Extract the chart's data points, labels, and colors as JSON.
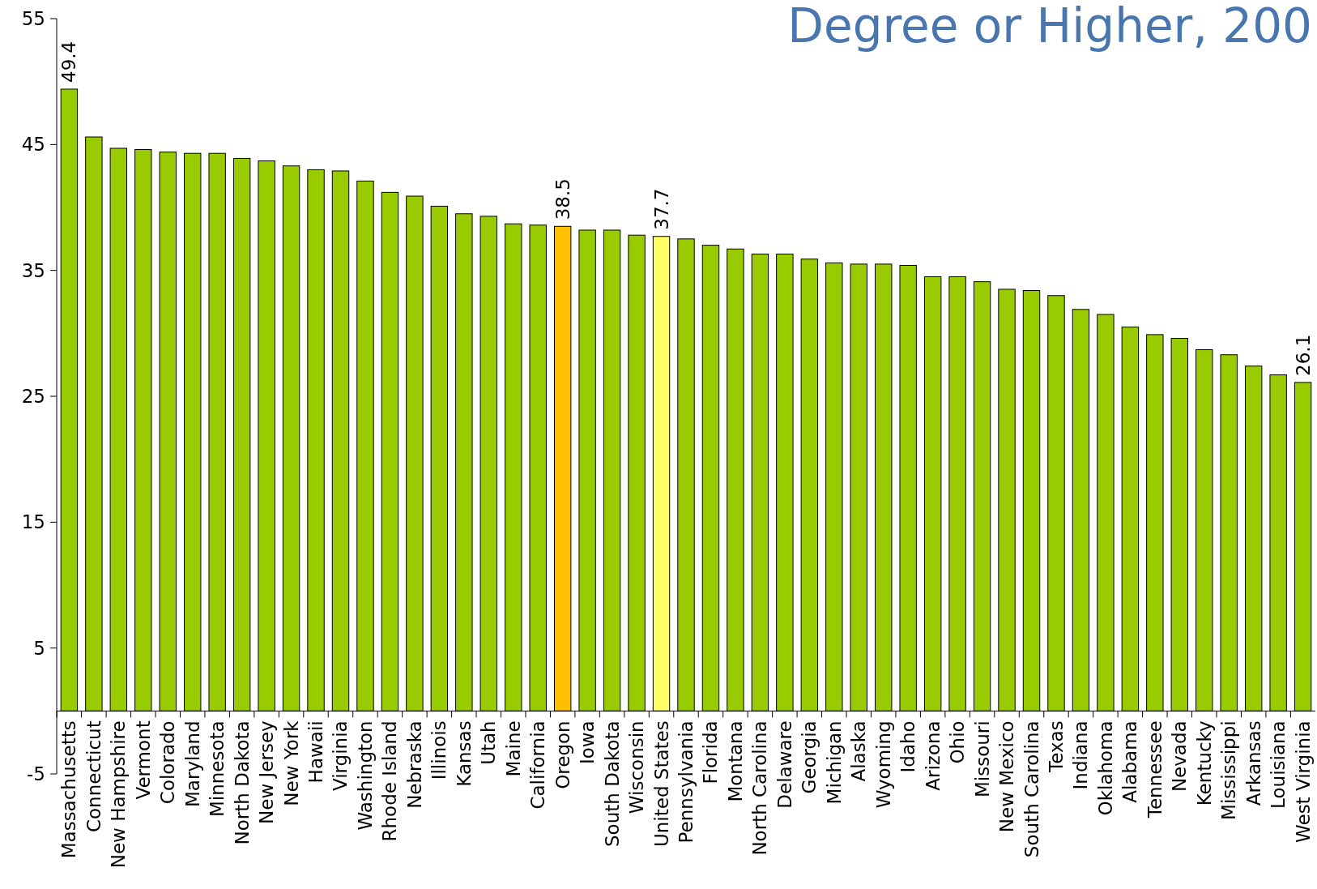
{
  "chart_data": {
    "type": "bar",
    "title": "Degree or Higher, 200",
    "categories": [
      "Massachusetts",
      "Connecticut",
      "New Hampshire",
      "Vermont",
      "Colorado",
      "Maryland",
      "Minnesota",
      "North Dakota",
      "New Jersey",
      "New York",
      "Hawaii",
      "Virginia",
      "Washington",
      "Rhode Island",
      "Nebraska",
      "Illinois",
      "Kansas",
      "Utah",
      "Maine",
      "California",
      "Oregon",
      "Iowa",
      "South Dakota",
      "Wisconsin",
      "United States",
      "Pennsylvania",
      "Florida",
      "Montana",
      "North Carolina",
      "Delaware",
      "Georgia",
      "Michigan",
      "Alaska",
      "Wyoming",
      "Idaho",
      "Arizona",
      "Ohio",
      "Missouri",
      "New Mexico",
      "South Carolina",
      "Texas",
      "Indiana",
      "Oklahoma",
      "Alabama",
      "Tennessee",
      "Nevada",
      "Kentucky",
      "Mississippi",
      "Arkansas",
      "Louisiana",
      "West Virginia"
    ],
    "values": [
      49.4,
      45.6,
      44.7,
      44.6,
      44.4,
      44.3,
      44.3,
      43.9,
      43.7,
      43.3,
      43.0,
      42.9,
      42.1,
      41.2,
      40.9,
      40.1,
      39.5,
      39.3,
      38.7,
      38.6,
      38.5,
      38.2,
      38.2,
      37.8,
      37.7,
      37.5,
      37.0,
      36.7,
      36.3,
      36.3,
      35.9,
      35.6,
      35.5,
      35.5,
      35.4,
      34.5,
      34.5,
      34.1,
      33.5,
      33.4,
      33.0,
      31.9,
      31.5,
      30.5,
      29.9,
      29.6,
      28.7,
      28.3,
      27.4,
      26.7,
      26.1
    ],
    "value_labels": [
      "49.4",
      null,
      null,
      null,
      null,
      null,
      null,
      null,
      null,
      null,
      null,
      null,
      null,
      null,
      null,
      null,
      null,
      null,
      null,
      null,
      "38.5",
      null,
      null,
      null,
      "37.7",
      null,
      null,
      null,
      null,
      null,
      null,
      null,
      null,
      null,
      null,
      null,
      null,
      null,
      null,
      null,
      null,
      null,
      null,
      null,
      null,
      null,
      null,
      null,
      null,
      null,
      "26.1"
    ],
    "colors": [
      "#99cc00",
      "#99cc00",
      "#99cc00",
      "#99cc00",
      "#99cc00",
      "#99cc00",
      "#99cc00",
      "#99cc00",
      "#99cc00",
      "#99cc00",
      "#99cc00",
      "#99cc00",
      "#99cc00",
      "#99cc00",
      "#99cc00",
      "#99cc00",
      "#99cc00",
      "#99cc00",
      "#99cc00",
      "#99cc00",
      "#ffc000",
      "#99cc00",
      "#99cc00",
      "#99cc00",
      "#ffff66",
      "#99cc00",
      "#99cc00",
      "#99cc00",
      "#99cc00",
      "#99cc00",
      "#99cc00",
      "#99cc00",
      "#99cc00",
      "#99cc00",
      "#99cc00",
      "#99cc00",
      "#99cc00",
      "#99cc00",
      "#99cc00",
      "#99cc00",
      "#99cc00",
      "#99cc00",
      "#99cc00",
      "#99cc00",
      "#99cc00",
      "#99cc00",
      "#99cc00",
      "#99cc00",
      "#99cc00",
      "#99cc00",
      "#99cc00"
    ],
    "ylim": [
      -5,
      55
    ],
    "yticks": [
      -5,
      5,
      15,
      25,
      35,
      45,
      55
    ],
    "grid": false
  }
}
